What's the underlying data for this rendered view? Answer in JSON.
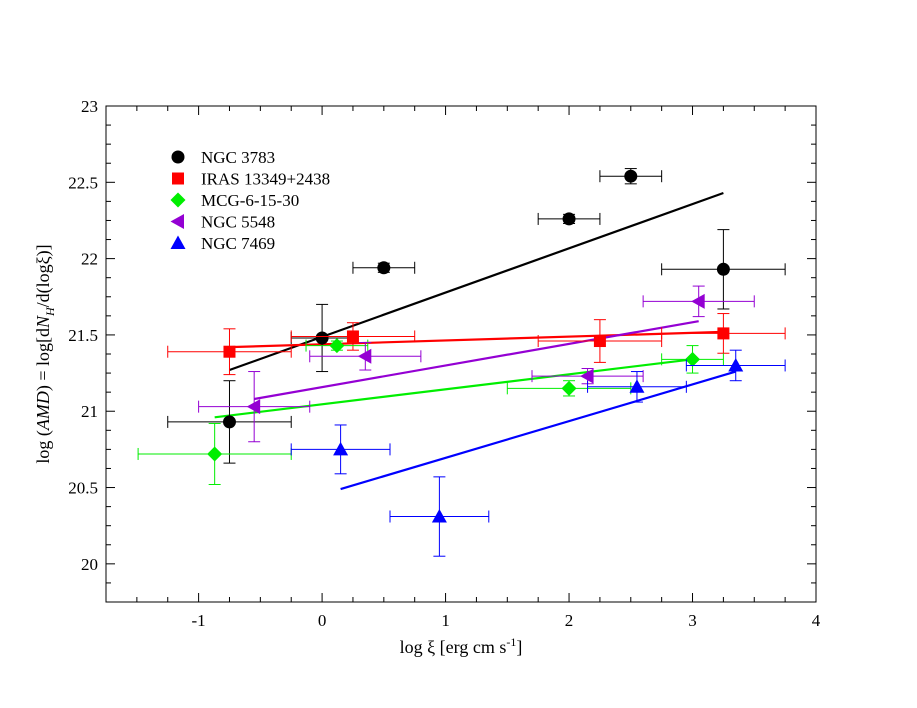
{
  "chart_data": {
    "type": "scatter",
    "title": "",
    "xlabel": "log ξ [erg cm s⁻¹]",
    "xlabel_parts": {
      "prefix": "log ξ [erg cm s",
      "sup": "-1",
      "suffix": "]"
    },
    "ylabel": "log (AMD) = log[dN_H/d(logξ)]",
    "ylabel_parts": {
      "p1": "log (",
      "p2": "AMD",
      "p3": ") = log[d",
      "p4": "N",
      "p5": "H",
      "p6": "/d(logξ)]"
    },
    "xlim": [
      -1.75,
      4
    ],
    "ylim": [
      19.75,
      23
    ],
    "xticks": [
      -1,
      0,
      1,
      2,
      3,
      4
    ],
    "yticks": [
      20,
      20.5,
      21,
      21.5,
      22,
      22.5,
      23
    ],
    "xtick_labels": [
      "-1",
      "0",
      "1",
      "2",
      "3",
      "4"
    ],
    "ytick_labels": [
      "20",
      "20.5",
      "21",
      "21.5",
      "22",
      "22.5",
      "23"
    ],
    "legend_position": "top-left",
    "series": [
      {
        "name": "NGC 3783",
        "color": "#000000",
        "marker": "circle",
        "points": [
          {
            "x": -0.75,
            "y": 20.93,
            "xerr": 0.5,
            "yerr": 0.27
          },
          {
            "x": 0.0,
            "y": 21.48,
            "xerr": 0.25,
            "yerr": 0.22
          },
          {
            "x": 0.5,
            "y": 21.94,
            "xerr": 0.25,
            "yerr": 0.03
          },
          {
            "x": 2.0,
            "y": 22.26,
            "xerr": 0.25,
            "yerr": 0.03
          },
          {
            "x": 2.5,
            "y": 22.54,
            "xerr": 0.25,
            "yerr": 0.05
          },
          {
            "x": 3.25,
            "y": 21.93,
            "xerr": 0.5,
            "yerr": 0.26
          }
        ],
        "fit": {
          "x1": -0.75,
          "y1": 21.27,
          "x2": 3.25,
          "y2": 22.43
        }
      },
      {
        "name": "IRAS 13349+2438",
        "color": "#ff0000",
        "marker": "square",
        "points": [
          {
            "x": -0.75,
            "y": 21.39,
            "xerr": 0.5,
            "yerr": 0.15
          },
          {
            "x": 0.25,
            "y": 21.49,
            "xerr": 0.5,
            "yerr": 0.09
          },
          {
            "x": 2.25,
            "y": 21.46,
            "xerr": 0.5,
            "yerr": 0.14
          },
          {
            "x": 3.25,
            "y": 21.51,
            "xerr": 0.5,
            "yerr": 0.13
          }
        ],
        "fit": {
          "x1": -0.75,
          "y1": 21.42,
          "x2": 3.25,
          "y2": 21.52
        }
      },
      {
        "name": "MCG-6-15-30",
        "color": "#00ee00",
        "marker": "diamond",
        "points": [
          {
            "x": -0.87,
            "y": 20.72,
            "xerr": 0.62,
            "yerr": 0.2
          },
          {
            "x": 0.12,
            "y": 21.43,
            "xerr": 0.25,
            "yerr": 0.03
          },
          {
            "x": 2.0,
            "y": 21.15,
            "xerr": 0.5,
            "yerr": 0.05
          },
          {
            "x": 3.0,
            "y": 21.34,
            "xerr": 0.25,
            "yerr": 0.09
          }
        ],
        "fit": {
          "x1": -0.87,
          "y1": 20.96,
          "x2": 3.0,
          "y2": 21.34
        }
      },
      {
        "name": "NGC 5548",
        "color": "#9400d3",
        "marker": "left-triangle",
        "points": [
          {
            "x": -0.55,
            "y": 21.03,
            "xerr": 0.45,
            "yerr": 0.23
          },
          {
            "x": 0.35,
            "y": 21.36,
            "xerr": 0.45,
            "yerr": 0.09
          },
          {
            "x": 2.15,
            "y": 21.23,
            "xerr": 0.45,
            "yerr": 0.05
          },
          {
            "x": 3.05,
            "y": 21.72,
            "xerr": 0.45,
            "yerr": 0.1
          }
        ],
        "fit": {
          "x1": -0.55,
          "y1": 21.08,
          "x2": 3.05,
          "y2": 21.59
        }
      },
      {
        "name": "NGC 7469",
        "color": "#0000ff",
        "marker": "up-triangle",
        "points": [
          {
            "x": 0.15,
            "y": 20.75,
            "xerr": 0.4,
            "yerr": 0.16
          },
          {
            "x": 0.95,
            "y": 20.31,
            "xerr": 0.4,
            "yerr": 0.26
          },
          {
            "x": 2.55,
            "y": 21.16,
            "xerr": 0.4,
            "yerr": 0.1
          },
          {
            "x": 3.35,
            "y": 21.3,
            "xerr": 0.4,
            "yerr": 0.1
          }
        ],
        "fit": {
          "x1": 0.15,
          "y1": 20.49,
          "x2": 3.35,
          "y2": 21.26
        }
      }
    ]
  }
}
